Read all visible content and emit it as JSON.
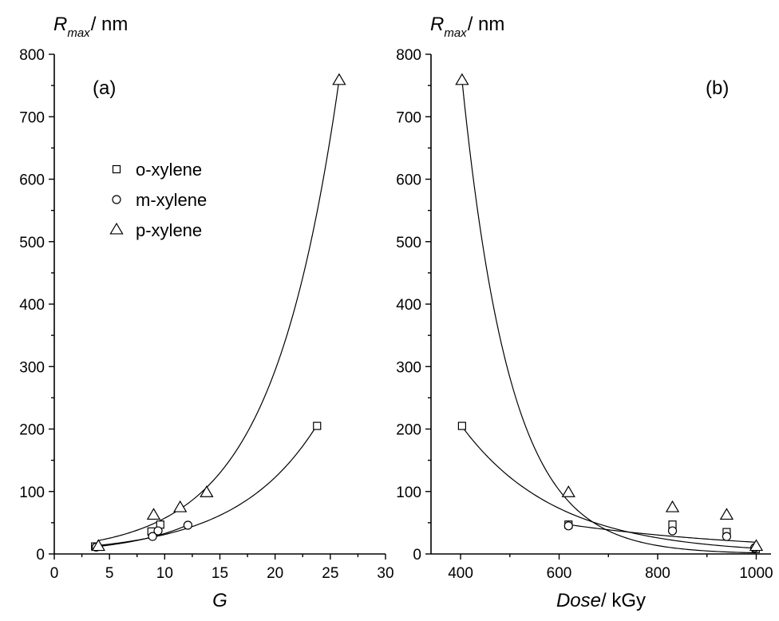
{
  "chart_data": [
    {
      "type": "scatter",
      "panel_label": "(a)",
      "ylabel": {
        "main": "R",
        "sub": "max",
        "unit": "/ nm"
      },
      "xlabel": {
        "main": "G",
        "unit": ""
      },
      "xlim": [
        0,
        30
      ],
      "ylim": [
        0,
        800
      ],
      "xticks": [
        0,
        5,
        10,
        15,
        20,
        25,
        30
      ],
      "yticks": [
        0,
        100,
        200,
        300,
        400,
        500,
        600,
        700,
        800
      ],
      "legend": {
        "position": "upper-left",
        "entries": [
          {
            "label": "o-xylene",
            "marker": "square"
          },
          {
            "label": "m-xylene",
            "marker": "circle"
          },
          {
            "label": "p-xylene",
            "marker": "triangle"
          }
        ]
      },
      "series": [
        {
          "name": "o-xylene",
          "marker": "square",
          "points": [
            [
              3.7,
              12
            ],
            [
              8.8,
              36
            ],
            [
              9.6,
              47
            ],
            [
              23.8,
              205
            ]
          ],
          "fit": {
            "type": "exp",
            "a": 7.9,
            "b": 0.1371,
            "range": [
              3.7,
              23.8
            ]
          }
        },
        {
          "name": "m-xylene",
          "marker": "circle",
          "points": [
            [
              3.8,
              11
            ],
            [
              8.9,
              28
            ],
            [
              9.4,
              37
            ],
            [
              12.1,
              46
            ]
          ],
          "fit": {
            "type": "exp",
            "a": 6.2,
            "b": 0.1664,
            "range": [
              3.8,
              12.1
            ]
          }
        },
        {
          "name": "p-xylene",
          "marker": "triangle",
          "points": [
            [
              4.0,
              12
            ],
            [
              9.0,
              62
            ],
            [
              11.4,
              74
            ],
            [
              13.8,
              98
            ],
            [
              25.8,
              758
            ]
          ],
          "fit": {
            "type": "exp",
            "a": 11.15,
            "b": 0.1636,
            "range": [
              3.9,
              25.8
            ]
          }
        }
      ]
    },
    {
      "type": "scatter",
      "panel_label": "(b)",
      "ylabel": {
        "main": "R",
        "sub": "max",
        "unit": "/ nm"
      },
      "xlabel": {
        "main": "Dose",
        "unit": "/ kGy"
      },
      "xlim": [
        340,
        1030
      ],
      "ylim": [
        0,
        800
      ],
      "xticks": [
        400,
        600,
        800,
        1000
      ],
      "yticks": [
        0,
        100,
        200,
        300,
        400,
        500,
        600,
        700,
        800
      ],
      "series": [
        {
          "name": "o-xylene",
          "marker": "square",
          "points": [
            [
              403,
              205
            ],
            [
              619,
              47
            ],
            [
              830,
              47
            ],
            [
              940,
              35
            ],
            [
              999,
              8
            ]
          ],
          "fit": {
            "type": "exp",
            "a": 204,
            "b": -0.005214,
            "x0": 403,
            "range": [
              403,
              1000
            ]
          }
        },
        {
          "name": "m-xylene",
          "marker": "circle",
          "points": [
            [
              619,
              45
            ],
            [
              830,
              37
            ],
            [
              940,
              28
            ],
            [
              997,
              10
            ]
          ],
          "fit": {
            "type": "exp",
            "a": 47,
            "b": -0.002415,
            "x0": 619,
            "range": [
              619,
              1000
            ]
          }
        },
        {
          "name": "p-xylene",
          "marker": "triangle",
          "points": [
            [
              403,
              758
            ],
            [
              619,
              98
            ],
            [
              830,
              74
            ],
            [
              940,
              62
            ],
            [
              1000,
              12
            ]
          ],
          "fit": {
            "type": "exp",
            "a": 758,
            "b": -0.01017,
            "x0": 403,
            "range": [
              403,
              1000
            ]
          }
        }
      ]
    }
  ]
}
